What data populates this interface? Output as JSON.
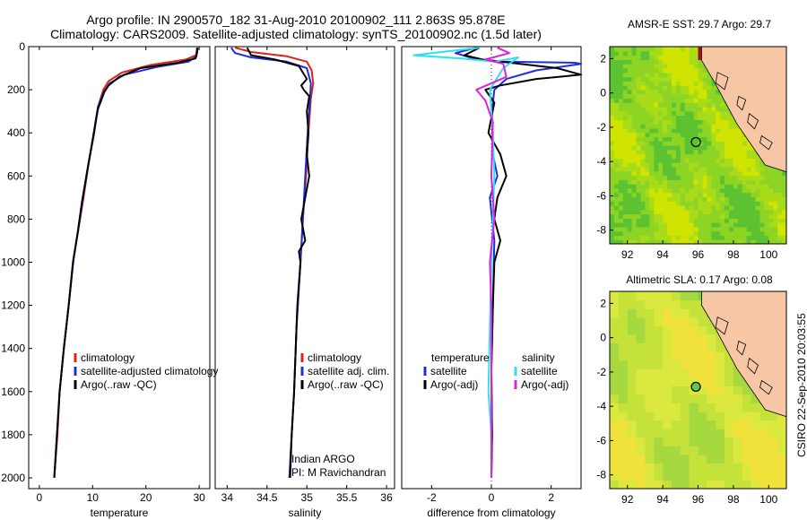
{
  "titles": {
    "line1": "Argo profile: IN 2900570_182 31-Aug-2010 20100902_111 2.863S 95.878E",
    "line2": "Climatology: CARS2009. Satellite-adjusted climatology: synTS_20100902.nc (1.5d later)"
  },
  "side_label": "CSIRO 22-Sep-2010 20:03:55",
  "credit": {
    "line1": "Indian ARGO",
    "line2": "PI: M Ravichandran"
  },
  "colors": {
    "climatology": "#e0211c",
    "satellite": "#1f2fd6",
    "argo": "#000000",
    "sat_salinity": "#2fe0f0",
    "argo_salinity": "#e020e0"
  },
  "chart_data": [
    {
      "type": "line",
      "title": "",
      "xlabel": "temperature",
      "ylabel": "",
      "xlim": [
        -2,
        32
      ],
      "ylim": [
        2050,
        0
      ],
      "xticks": [
        0,
        10,
        20,
        30
      ],
      "yticks": [
        0,
        200,
        400,
        600,
        800,
        1000,
        1200,
        1400,
        1600,
        1800,
        2000
      ],
      "legend": {
        "placement": "lower-middle",
        "entries": [
          {
            "name": "climatology",
            "color": "#e0211c"
          },
          {
            "name": "satellite-adjusted climatology",
            "color": "#1f2fd6"
          },
          {
            "name": "Argo(..raw -QC)",
            "color": "#000000"
          }
        ]
      },
      "series": [
        {
          "name": "climatology",
          "color": "#e0211c",
          "points": [
            [
              29.6,
              5
            ],
            [
              29.4,
              40
            ],
            [
              27.5,
              60
            ],
            [
              21,
              85
            ],
            [
              15.5,
              120
            ],
            [
              13,
              160
            ],
            [
              12,
              200
            ],
            [
              11,
              280
            ],
            [
              10.3,
              400
            ],
            [
              9.2,
              550
            ],
            [
              8.3,
              700
            ],
            [
              7.3,
              850
            ],
            [
              6.3,
              1000
            ],
            [
              5.5,
              1200
            ],
            [
              4.6,
              1400
            ],
            [
              3.8,
              1600
            ],
            [
              3.4,
              1800
            ],
            [
              2.8,
              2000
            ]
          ]
        },
        {
          "name": "satellite-adjusted climatology",
          "color": "#1f2fd6",
          "points": [
            [
              29.7,
              5
            ],
            [
              29.5,
              45
            ],
            [
              28,
              70
            ],
            [
              22,
              95
            ],
            [
              16,
              130
            ],
            [
              13.2,
              170
            ],
            [
              12.1,
              210
            ],
            [
              11,
              280
            ],
            [
              10.2,
              400
            ],
            [
              9.2,
              550
            ],
            [
              8.2,
              700
            ],
            [
              7.3,
              850
            ],
            [
              6.3,
              1000
            ],
            [
              5.5,
              1200
            ],
            [
              4.6,
              1400
            ],
            [
              3.8,
              1600
            ],
            [
              3.3,
              1800
            ],
            [
              2.8,
              2000
            ]
          ]
        },
        {
          "name": "Argo(..raw -QC)",
          "color": "#000000",
          "points": [
            [
              29.7,
              5
            ],
            [
              29.6,
              30
            ],
            [
              29.3,
              55
            ],
            [
              26,
              75
            ],
            [
              19,
              100
            ],
            [
              15,
              140
            ],
            [
              13,
              180
            ],
            [
              12.2,
              210
            ],
            [
              11,
              290
            ],
            [
              10.1,
              420
            ],
            [
              9.1,
              560
            ],
            [
              8,
              720
            ],
            [
              7.2,
              860
            ],
            [
              6.4,
              990
            ],
            [
              5.5,
              1200
            ],
            [
              4.6,
              1400
            ],
            [
              3.8,
              1600
            ],
            [
              3.3,
              1800
            ],
            [
              2.8,
              2000
            ]
          ]
        }
      ]
    },
    {
      "type": "line",
      "title": "",
      "xlabel": "salinity",
      "ylabel": "",
      "xlim": [
        33.85,
        36.1
      ],
      "ylim": [
        2050,
        0
      ],
      "xticks": [
        34,
        34.5,
        35,
        35.5,
        36
      ],
      "legend": {
        "placement": "lower-right",
        "entries": [
          {
            "name": "climatology",
            "color": "#e0211c"
          },
          {
            "name": "satellite adj. clim.",
            "color": "#1f2fd6"
          },
          {
            "name": "Argo(..raw -QC)",
            "color": "#000000"
          }
        ]
      },
      "series": [
        {
          "name": "climatology",
          "color": "#e0211c",
          "points": [
            [
              34.1,
              5
            ],
            [
              34.3,
              25
            ],
            [
              34.75,
              45
            ],
            [
              35.0,
              70
            ],
            [
              35.06,
              110
            ],
            [
              35.08,
              170
            ],
            [
              35.05,
              240
            ],
            [
              35.02,
              400
            ],
            [
              34.99,
              600
            ],
            [
              34.95,
              800
            ],
            [
              34.92,
              1000
            ],
            [
              34.87,
              1300
            ],
            [
              34.84,
              1600
            ],
            [
              34.81,
              1800
            ],
            [
              34.78,
              2000
            ]
          ]
        },
        {
          "name": "satellite adj. clim.",
          "color": "#1f2fd6",
          "points": [
            [
              34.05,
              5
            ],
            [
              34.1,
              30
            ],
            [
              34.3,
              50
            ],
            [
              34.75,
              70
            ],
            [
              35.0,
              100
            ],
            [
              35.05,
              170
            ],
            [
              35.04,
              240
            ],
            [
              35.01,
              400
            ],
            [
              34.98,
              600
            ],
            [
              34.95,
              800
            ],
            [
              34.92,
              1000
            ],
            [
              34.87,
              1300
            ],
            [
              34.84,
              1600
            ],
            [
              34.81,
              1800
            ],
            [
              34.78,
              2000
            ]
          ]
        },
        {
          "name": "Argo(..raw -QC)",
          "color": "#000000",
          "points": [
            [
              34.25,
              5
            ],
            [
              34.3,
              40
            ],
            [
              34.6,
              60
            ],
            [
              34.9,
              90
            ],
            [
              35.0,
              150
            ],
            [
              34.93,
              180
            ],
            [
              34.96,
              200
            ],
            [
              35.03,
              230
            ],
            [
              35.0,
              300
            ],
            [
              35.02,
              400
            ],
            [
              35.0,
              500
            ],
            [
              35.03,
              600
            ],
            [
              34.98,
              700
            ],
            [
              34.93,
              800
            ],
            [
              34.98,
              900
            ],
            [
              34.9,
              950
            ],
            [
              34.92,
              1000
            ],
            [
              34.88,
              1200
            ],
            [
              34.86,
              1400
            ],
            [
              34.84,
              1600
            ],
            [
              34.81,
              1800
            ],
            [
              34.79,
              2000
            ]
          ]
        }
      ]
    },
    {
      "type": "line",
      "title": "",
      "xlabel": "difference from climatology",
      "ylabel": "",
      "xlim": [
        -3,
        3
      ],
      "ylim": [
        2050,
        0
      ],
      "xticks": [
        -2,
        0,
        2
      ],
      "legend": {
        "placement": "lower",
        "entries": [
          {
            "name": "temperature",
            "color": ""
          },
          {
            "name": "satellite",
            "color": "#1f2fd6"
          },
          {
            "name": "Argo(-adj)",
            "color": "#000000"
          },
          {
            "name": "salinity",
            "color": ""
          },
          {
            "name": "satellite",
            "color": "#2fe0f0"
          },
          {
            "name": "Argo(-adj)",
            "color": "#e020e0"
          }
        ]
      },
      "series": [
        {
          "name": "temperature satellite",
          "color": "#1f2fd6",
          "points": [
            [
              -0.5,
              5
            ],
            [
              -1.2,
              30
            ],
            [
              -0.6,
              55
            ],
            [
              0.3,
              70
            ],
            [
              2.8,
              75
            ],
            [
              3,
              80
            ],
            [
              1.5,
              110
            ],
            [
              0.5,
              150
            ],
            [
              0.1,
              200
            ],
            [
              0.02,
              300
            ],
            [
              0.05,
              500
            ],
            [
              0.2,
              600
            ],
            [
              -0.05,
              700
            ],
            [
              0.1,
              900
            ],
            [
              0.05,
              1200
            ],
            [
              0,
              1500
            ],
            [
              0.02,
              1800
            ],
            [
              0,
              2000
            ]
          ]
        },
        {
          "name": "temperature Argo(-adj)",
          "color": "#000000",
          "points": [
            [
              -0.4,
              5
            ],
            [
              -0.9,
              40
            ],
            [
              -0.3,
              60
            ],
            [
              2.2,
              100
            ],
            [
              3,
              130
            ],
            [
              1.5,
              150
            ],
            [
              0.3,
              180
            ],
            [
              -0.2,
              200
            ],
            [
              0.1,
              260
            ],
            [
              -0.1,
              400
            ],
            [
              0.3,
              500
            ],
            [
              0.5,
              600
            ],
            [
              0.2,
              700
            ],
            [
              0.1,
              800
            ],
            [
              0.3,
              900
            ],
            [
              0.1,
              1000
            ],
            [
              0.05,
              1200
            ],
            [
              0,
              1500
            ],
            [
              0.02,
              1800
            ],
            [
              0,
              2000
            ]
          ]
        },
        {
          "name": "salinity satellite",
          "color": "#2fe0f0",
          "points": [
            [
              -0.4,
              5
            ],
            [
              -2.6,
              40
            ],
            [
              -1,
              55
            ],
            [
              0.1,
              70
            ],
            [
              0.9,
              50
            ],
            [
              0.4,
              100
            ],
            [
              -0.05,
              200
            ],
            [
              0.05,
              400
            ],
            [
              0.1,
              600
            ],
            [
              0.05,
              800
            ],
            [
              0,
              1000
            ],
            [
              -0.05,
              1300
            ],
            [
              -0.1,
              1600
            ],
            [
              0,
              1800
            ],
            [
              0,
              2000
            ]
          ]
        },
        {
          "name": "salinity Argo(-adj)",
          "color": "#e020e0",
          "points": [
            [
              0.2,
              5
            ],
            [
              0.6,
              30
            ],
            [
              -0.2,
              60
            ],
            [
              0.4,
              80
            ],
            [
              0.5,
              140
            ],
            [
              -0.5,
              200
            ],
            [
              -0.2,
              250
            ],
            [
              0.05,
              350
            ],
            [
              0,
              600
            ],
            [
              0.1,
              800
            ],
            [
              -0.05,
              1000
            ],
            [
              0,
              1200
            ],
            [
              0,
              1500
            ],
            [
              0,
              2000
            ]
          ]
        }
      ]
    }
  ],
  "maps": [
    {
      "type": "heatmap",
      "title": "AMSR-E SST: 29.7 Argo: 29.7",
      "xlim": [
        91,
        101
      ],
      "ylim": [
        -8.8,
        2.7
      ],
      "xticks": [
        92,
        94,
        96,
        98,
        100
      ],
      "yticks": [
        -8,
        -6,
        -4,
        -2,
        0,
        2
      ],
      "marker": {
        "lon": 95.878,
        "lat": -2.863
      }
    },
    {
      "type": "heatmap",
      "title": "Altimetric SLA: 0.17 Argo: 0.08",
      "xlim": [
        91,
        101
      ],
      "ylim": [
        -8.8,
        2.7
      ],
      "xticks": [
        92,
        94,
        96,
        98,
        100
      ],
      "yticks": [
        -8,
        -6,
        -4,
        -2,
        0,
        2
      ],
      "marker": {
        "lon": 95.878,
        "lat": -2.863
      }
    }
  ]
}
